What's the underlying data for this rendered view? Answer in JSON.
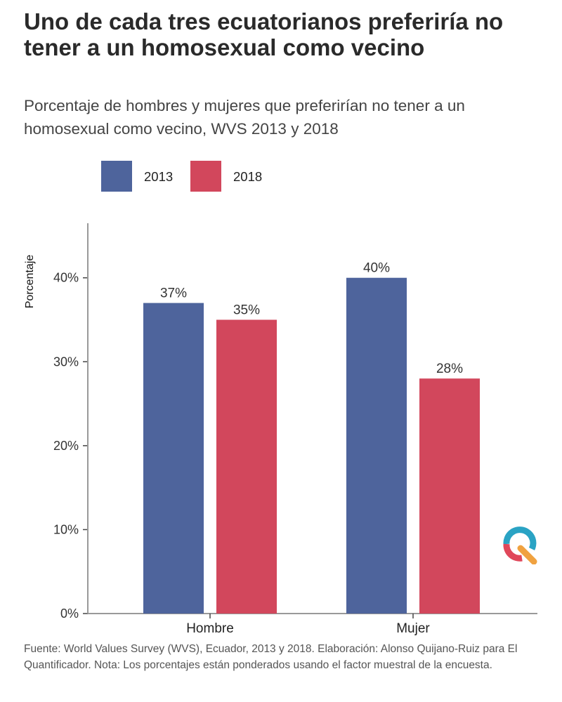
{
  "title": "Uno de cada tres ecuatorianos preferiría no tener a un homosexual como vecino",
  "subtitle": "Porcentaje de hombres y mujeres que preferirían no tener a un homosexual como vecino, WVS 2013 y 2018",
  "footnote": "Fuente: World Values Survey (WVS), Ecuador, 2013 y 2018. Elaboración: Alonso Quijano-Ruiz para El Quantificador. Nota: Los porcentajes están ponderados usando el factor muestral de la encuesta.",
  "colors": {
    "series_2013": "#4e649c",
    "series_2018": "#d2475c",
    "axis": "#999999",
    "logo_blue": "#2aa3c4",
    "logo_red": "#e0475a",
    "logo_orange": "#f0a240"
  },
  "logo_icon": "quantificador-logo-icon",
  "chart_data": {
    "type": "bar",
    "title": "",
    "xlabel": "",
    "ylabel": "Porcentaje",
    "categories": [
      "Hombre",
      "Mujer"
    ],
    "series": [
      {
        "name": "2013",
        "values": [
          37,
          40
        ],
        "labels": [
          "37%",
          "40%"
        ]
      },
      {
        "name": "2018",
        "values": [
          35,
          28
        ],
        "labels": [
          "35%",
          "28%"
        ]
      }
    ],
    "ylim": [
      0,
      46.5
    ],
    "yticks": [
      0,
      10,
      20,
      30,
      40
    ],
    "ytick_labels": [
      "0%",
      "10%",
      "20%",
      "30%",
      "40%"
    ],
    "grid": false,
    "legend": "top-left"
  }
}
